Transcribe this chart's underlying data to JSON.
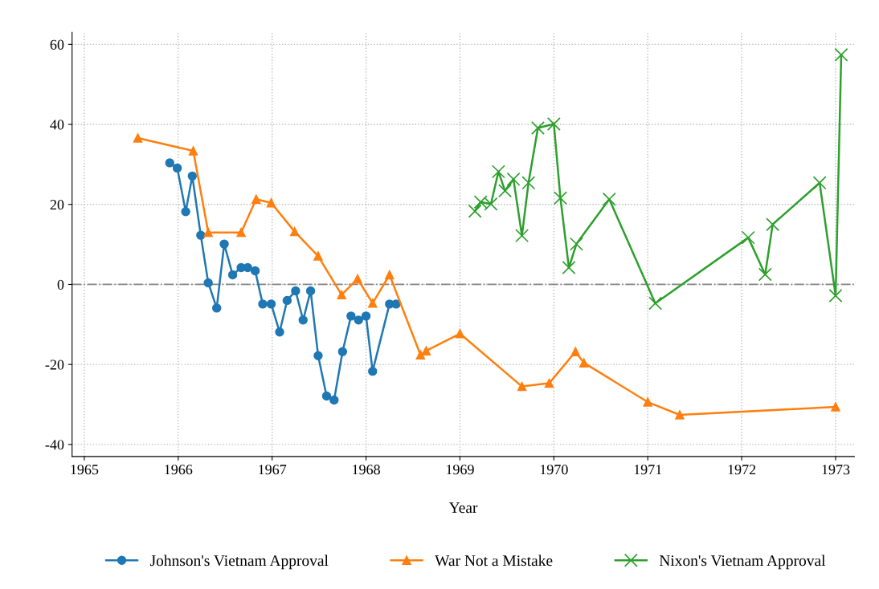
{
  "chart_data": {
    "type": "line",
    "xlabel": "Year",
    "xlim": [
      1964.87,
      1973.2
    ],
    "ylim": [
      -43,
      63
    ],
    "xticks": [
      1965,
      1966,
      1967,
      1968,
      1969,
      1970,
      1971,
      1972,
      1973
    ],
    "yticks": [
      -40,
      -20,
      0,
      20,
      40,
      60
    ],
    "grid": true,
    "legend": "bottom",
    "line_style": "solid",
    "ref_lines": [
      {
        "axis": "y",
        "value": 0,
        "color": "#888888",
        "line_style": "dashdot"
      }
    ],
    "series": [
      {
        "name": "Johnson's Vietnam Approval",
        "color": "#1f77b4",
        "marker": "circle",
        "x": [
          1965.91,
          1965.99,
          1966.08,
          1966.15,
          1966.24,
          1966.32,
          1966.41,
          1966.49,
          1966.58,
          1966.67,
          1966.74,
          1966.82,
          1966.9,
          1966.99,
          1967.08,
          1967.16,
          1967.25,
          1967.33,
          1967.41,
          1967.49,
          1967.58,
          1967.66,
          1967.75,
          1967.84,
          1967.92,
          1968.0,
          1968.07,
          1968.25,
          1968.32
        ],
        "values": [
          30.4,
          29.1,
          18.2,
          27.1,
          12.3,
          0.4,
          -5.9,
          10.1,
          2.4,
          4.2,
          4.2,
          3.4,
          -4.9,
          -4.9,
          -11.9,
          -4.0,
          -1.6,
          -8.9,
          -1.6,
          -17.8,
          -27.9,
          -28.9,
          -16.8,
          -7.9,
          -8.9,
          -7.9,
          -21.7,
          -4.9,
          -4.9
        ]
      },
      {
        "name": "War Not a Mistake",
        "color": "#ff7f0e",
        "marker": "triangle",
        "x": [
          1965.57,
          1966.16,
          1966.32,
          1966.67,
          1966.83,
          1966.99,
          1967.24,
          1967.49,
          1967.74,
          1967.91,
          1968.07,
          1968.25,
          1968.58,
          1968.64,
          1969.0,
          1969.66,
          1969.95,
          1970.23,
          1970.32,
          1971.0,
          1971.34,
          1973.0
        ],
        "values": [
          36.6,
          33.4,
          13.0,
          13.0,
          21.3,
          20.4,
          13.2,
          7.1,
          -2.6,
          1.4,
          -4.7,
          2.4,
          -17.6,
          -16.6,
          -12.3,
          -25.5,
          -24.7,
          -16.8,
          -19.6,
          -29.4,
          -32.6,
          -30.6
        ]
      },
      {
        "name": "Nixon's Vietnam Approval",
        "color": "#2ca02c",
        "marker": "cross",
        "x": [
          1969.16,
          1969.22,
          1969.33,
          1969.41,
          1969.48,
          1969.57,
          1969.66,
          1969.73,
          1969.83,
          1970.0,
          1970.07,
          1970.16,
          1970.24,
          1970.59,
          1971.08,
          1972.07,
          1972.25,
          1972.33,
          1972.83,
          1973.0,
          1973.06
        ],
        "values": [
          18.3,
          20.6,
          20.1,
          28.2,
          23.4,
          26.3,
          12.2,
          25.4,
          39.1,
          40.1,
          21.6,
          4.2,
          10.1,
          21.3,
          -4.7,
          11.7,
          2.5,
          15.0,
          25.4,
          -2.8,
          57.4
        ]
      }
    ]
  }
}
